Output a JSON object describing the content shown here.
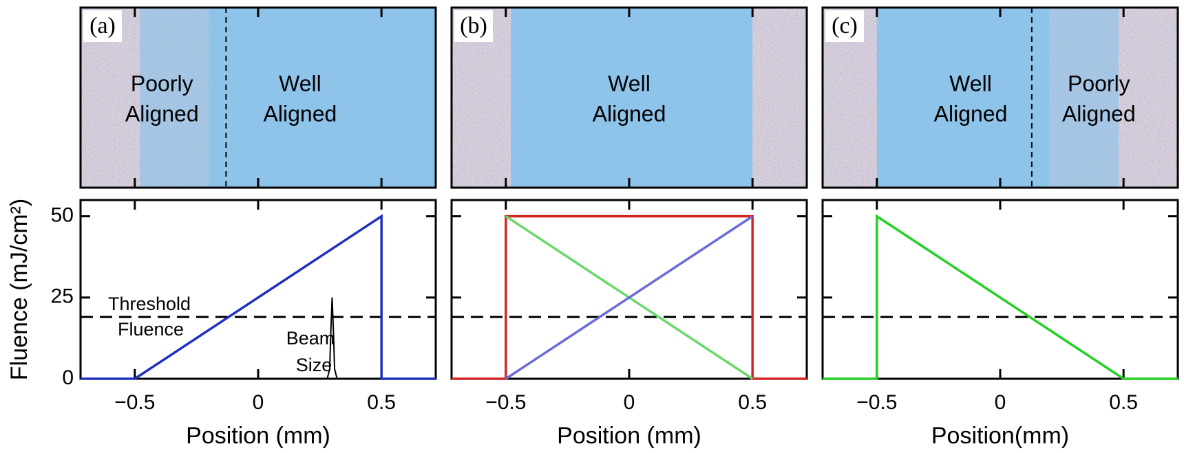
{
  "chart_data": [
    {
      "type": "line",
      "panel_label": "(a)",
      "image_labels": [
        [
          "Poorly",
          "Aligned"
        ],
        [
          "Well",
          "Aligned"
        ]
      ],
      "ylabel": "Fluence (mJ/cm²)",
      "xlabel": "Position (mm)",
      "xlim": [
        -0.72,
        0.72
      ],
      "ylim": [
        0,
        55
      ],
      "xticks": [
        {
          "value": -0.5,
          "label": "−0.5"
        },
        0,
        0.5
      ],
      "yticks": [
        0,
        25,
        50
      ],
      "threshold": 19,
      "annotations": [
        "Threshold",
        "Fluence",
        "Beam",
        "Size"
      ],
      "series": [
        {
          "color": "#1f2fc0",
          "x": [
            -0.72,
            -0.5,
            0.5,
            0.5,
            0.72
          ],
          "values": [
            0,
            0,
            50,
            0,
            0
          ]
        },
        {
          "color": "#000000",
          "x": [
            0.28,
            0.29,
            0.295,
            0.3,
            0.305,
            0.31,
            0.32
          ],
          "values": [
            0,
            3,
            15,
            25,
            15,
            3,
            0
          ]
        }
      ]
    },
    {
      "type": "line",
      "panel_label": "(b)",
      "image_labels": [
        [
          "Well",
          "Aligned"
        ]
      ],
      "xlabel": "Position (mm)",
      "xlim": [
        -0.72,
        0.72
      ],
      "ylim": [
        0,
        55
      ],
      "xticks": [
        {
          "value": -0.5,
          "label": "−0.5"
        },
        0,
        0.5
      ],
      "yticks": [
        0,
        25,
        50
      ],
      "threshold": 19,
      "series": [
        {
          "color": "#d42424",
          "x": [
            -0.72,
            -0.5,
            -0.5,
            0.5,
            0.5,
            0.72
          ],
          "values": [
            0,
            0,
            50,
            50,
            0,
            0
          ]
        },
        {
          "color": "#6ad86a",
          "x": [
            -0.5,
            0.5
          ],
          "values": [
            50,
            0
          ]
        },
        {
          "color": "#6a6ad8",
          "x": [
            -0.5,
            0.5
          ],
          "values": [
            0,
            50
          ]
        }
      ]
    },
    {
      "type": "line",
      "panel_label": "(c)",
      "image_labels": [
        [
          "Well",
          "Aligned"
        ],
        [
          "Poorly",
          "Aligned"
        ]
      ],
      "xlabel": "Position(mm)",
      "xlim": [
        -0.72,
        0.72
      ],
      "ylim": [
        0,
        55
      ],
      "xticks": [
        {
          "value": -0.5,
          "label": "−0.5"
        },
        0,
        0.5
      ],
      "yticks": [
        0,
        25,
        50
      ],
      "threshold": 19,
      "series": [
        {
          "color": "#22d022",
          "x": [
            -0.72,
            -0.5,
            -0.5,
            0.5,
            0.72
          ],
          "values": [
            0,
            0,
            50,
            0,
            0
          ]
        }
      ]
    }
  ]
}
